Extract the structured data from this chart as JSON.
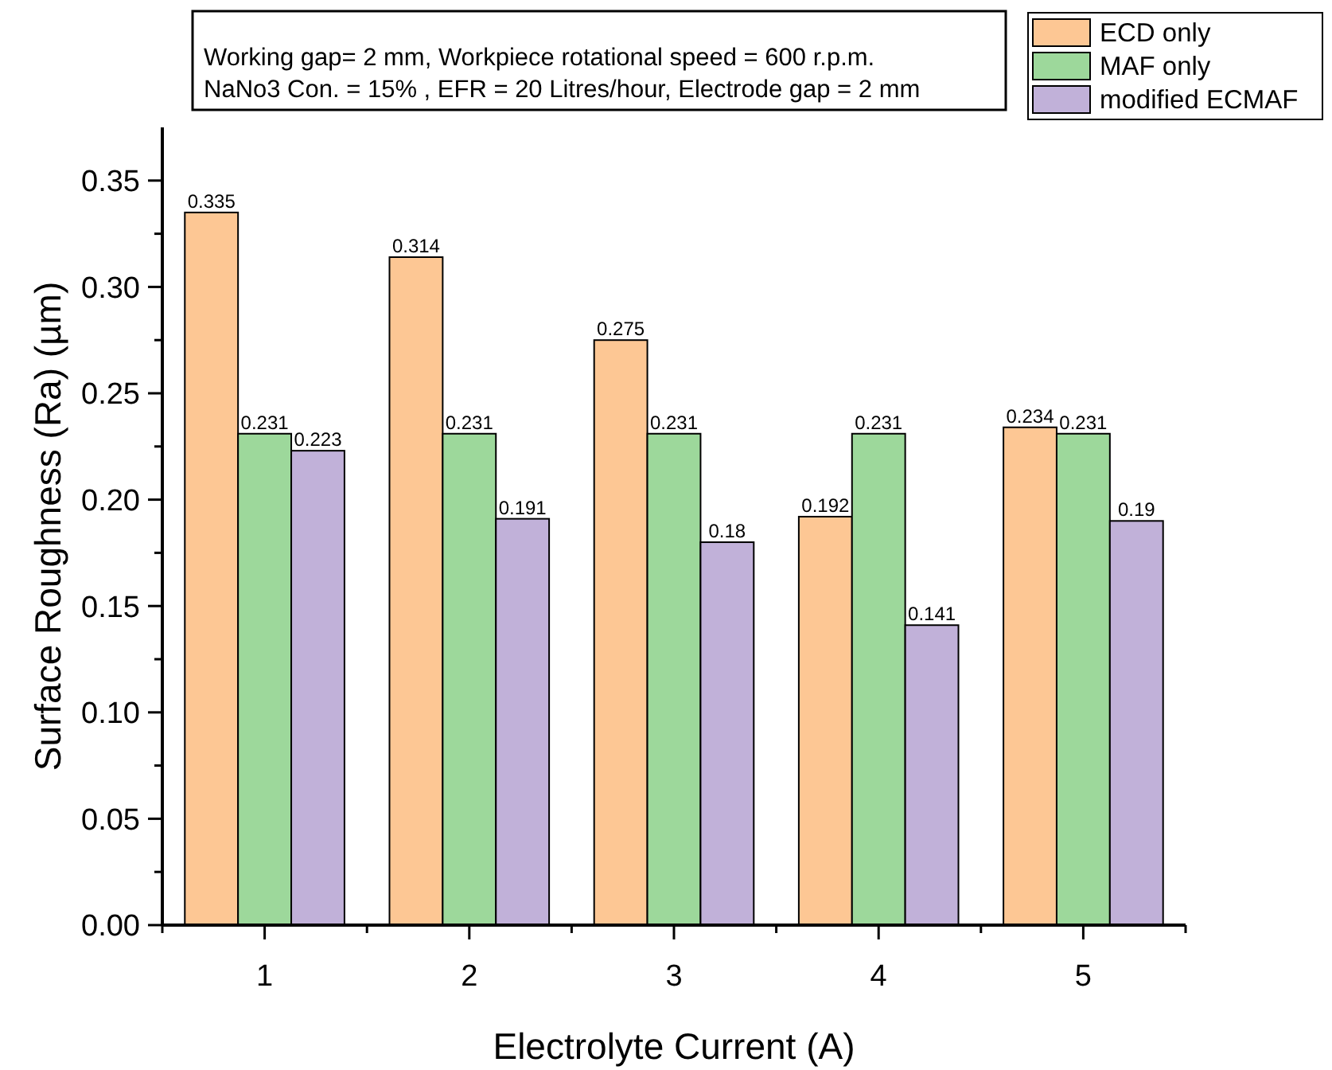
{
  "chart_data": {
    "type": "bar",
    "xlabel": "Electrolyte Current (A)",
    "ylabel": "Surface Roughness (Ra) (µm)",
    "annotations": [
      "Working gap= 2 mm, Workpiece rotational speed = 600 r.p.m.",
      "NaNo3 Con. = 15%  , EFR = 20 Litres/hour, Electrode gap = 2 mm"
    ],
    "x": [
      1,
      2,
      3,
      4,
      5
    ],
    "xlim": [
      0.5,
      5.5
    ],
    "xticks": [
      {
        "value": 0.5,
        "label": null
      },
      1,
      {
        "value": 1.5,
        "label": null
      },
      2,
      {
        "value": 2.5,
        "label": null
      },
      3,
      {
        "value": 3.5,
        "label": null
      },
      4,
      {
        "value": 4.5,
        "label": null
      },
      5,
      {
        "value": 5.5,
        "label": null
      }
    ],
    "ylim": [
      0,
      0.375
    ],
    "yticks": [
      {
        "value": 0,
        "label": "0.00"
      },
      {
        "value": 0.025,
        "label": null
      },
      {
        "value": 0.05,
        "label": "0.05"
      },
      {
        "value": 0.075,
        "label": null
      },
      {
        "value": 0.1,
        "label": "0.10"
      },
      {
        "value": 0.125,
        "label": null
      },
      {
        "value": 0.15,
        "label": "0.15"
      },
      {
        "value": 0.175,
        "label": null
      },
      {
        "value": 0.2,
        "label": "0.20"
      },
      {
        "value": 0.225,
        "label": null
      },
      {
        "value": 0.25,
        "label": "0.25"
      },
      {
        "value": 0.275,
        "label": null
      },
      {
        "value": 0.3,
        "label": "0.30"
      },
      {
        "value": 0.325,
        "label": null
      },
      {
        "value": 0.35,
        "label": "0.35"
      }
    ],
    "series": [
      {
        "name": "ECD only",
        "color": "#fdc794",
        "values": [
          0.335,
          0.314,
          0.275,
          0.192,
          0.234
        ]
      },
      {
        "name": "MAF only",
        "color": "#9dd89b",
        "values": [
          0.231,
          0.231,
          0.231,
          0.231,
          0.231
        ]
      },
      {
        "name": "modified ECMAF",
        "color": "#c1b1d9",
        "values": [
          0.223,
          0.191,
          0.18,
          0.141,
          0.19
        ]
      }
    ],
    "data_labels": true,
    "legend": "top right",
    "grid": false
  }
}
